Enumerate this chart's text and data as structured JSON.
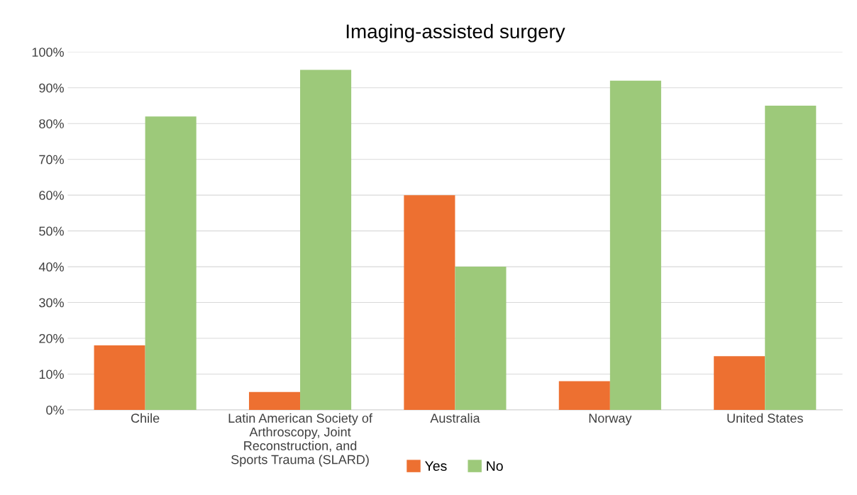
{
  "chart_data": {
    "type": "bar",
    "title": "Imaging-assisted surgery",
    "categories": [
      "Chile",
      "Latin American Society of\nArthroscopy, Joint\nReconstruction, and\nSports Trauma (SLARD)",
      "Australia",
      "Norway",
      "United States"
    ],
    "series": [
      {
        "name": "Yes",
        "color": "#ed7031",
        "values": [
          18,
          5,
          60,
          8,
          15
        ]
      },
      {
        "name": "No",
        "color": "#9dc97a",
        "values": [
          82,
          95,
          40,
          92,
          85
        ]
      }
    ],
    "ylim": [
      0,
      100
    ],
    "yticks": [
      {
        "value": 0,
        "label": "0%"
      },
      {
        "value": 10,
        "label": "10%"
      },
      {
        "value": 20,
        "label": "20%"
      },
      {
        "value": 30,
        "label": "30%"
      },
      {
        "value": 40,
        "label": "40%"
      },
      {
        "value": 50,
        "label": "50%"
      },
      {
        "value": 60,
        "label": "60%"
      },
      {
        "value": 70,
        "label": "70%"
      },
      {
        "value": 80,
        "label": "80%"
      },
      {
        "value": 90,
        "label": "90%"
      },
      {
        "value": 100,
        "label": "100%"
      }
    ],
    "grid": "y",
    "legend": "bottom"
  }
}
